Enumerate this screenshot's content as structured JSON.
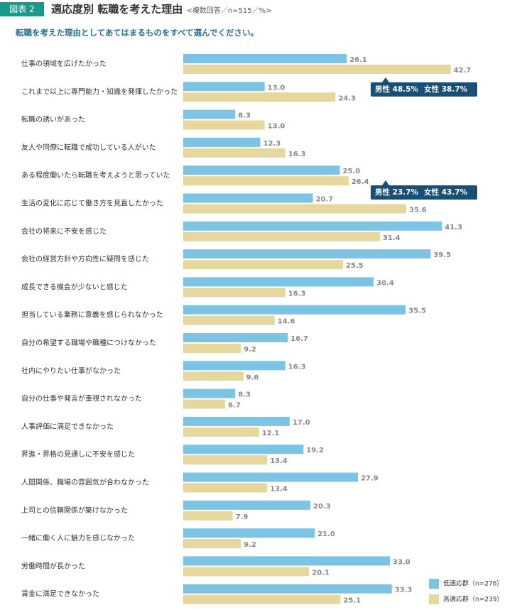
{
  "header": {
    "badge": "図表 2",
    "title": "適応度別 転職を考えた理由",
    "note": "<複数回答／n=515／%>"
  },
  "question": "転職を考えた理由としてあてはまるものをすべて選んでください。",
  "callouts": [
    {
      "male": "男性 48.5%",
      "female": "女性 38.7%"
    },
    {
      "male": "男性 23.7%",
      "female": "女性 43.7%"
    }
  ],
  "legend": [
    {
      "label": "低適応群（n=276）",
      "color": "#7dc3e3"
    },
    {
      "label": "高適応群（n=239）",
      "color": "#e6d79e"
    }
  ],
  "chart_data": {
    "type": "bar",
    "orientation": "horizontal",
    "categories": [
      "仕事の領域を広げたかった",
      "これまで以上に専門能力・知識を発揮したかった",
      "転職の誘いがあった",
      "友人や同僚に転職で成功している人がいた",
      "ある程度働いたら転職を考えようと思っていた",
      "生活の変化に応じて働き方を見直したかった",
      "会社の将来に不安を感じた",
      "会社の経営方針や方向性に疑問を感じた",
      "成長できる機会が少ないと感じた",
      "担当している業務に意義を感じられなかった",
      "自分の希望する職場や職種につけなかった",
      "社内にやりたい仕事がなかった",
      "自分の仕事や発言が重視されなかった",
      "人事評価に満足できなかった",
      "昇進・昇格の見通しに不安を感じた",
      "人間関係、職場の雰囲気が合わなかった",
      "上司との信頼関係が築けなかった",
      "一緒に働く人に魅力を感じなかった",
      "労働時間が長かった",
      "賃金に満足できなかった"
    ],
    "series": [
      {
        "name": "低適応群（n=276）",
        "color": "#7dc3e3",
        "values": [
          26.1,
          13.0,
          8.3,
          12.3,
          25.0,
          20.7,
          41.3,
          39.5,
          30.4,
          35.5,
          16.7,
          16.3,
          8.3,
          17.0,
          19.2,
          27.9,
          20.3,
          21.0,
          33.0,
          33.3
        ],
        "labels": [
          "26.1",
          "13.0",
          "8.3",
          "12.3",
          "25.0",
          "20.7",
          "41.3",
          "39.5",
          "30.4",
          "35.5",
          "16.7",
          "16.3",
          "8.3",
          "17.0",
          "19.2",
          "27.9",
          "20.3",
          "21.0",
          "33.0",
          "33.3"
        ]
      },
      {
        "name": "高適応群（n=239）",
        "color": "#e6d79e",
        "values": [
          42.7,
          24.3,
          13.0,
          16.3,
          26.4,
          35.6,
          31.4,
          25.5,
          16.3,
          14.6,
          9.2,
          9.6,
          6.7,
          12.1,
          13.4,
          13.4,
          7.9,
          9.2,
          20.1,
          25.1
        ],
        "labels": [
          "42.7",
          "24.3",
          "13.0",
          "16.3",
          "26.4",
          "35.6",
          "31.4",
          "25.5",
          "16.3",
          "14.6",
          "9.2",
          "9.6",
          "6.7",
          "12.1",
          "13.4",
          "13.4",
          "7.9",
          "9.2",
          "20.1",
          "25.1"
        ]
      }
    ],
    "xlim": [
      0,
      45
    ],
    "grid": false,
    "legend_position": "bottom-right"
  }
}
